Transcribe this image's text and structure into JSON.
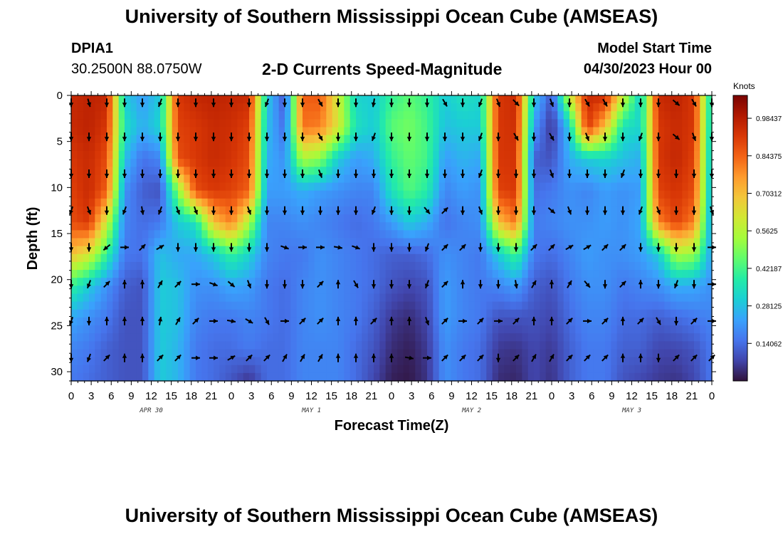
{
  "header": {
    "title": "University of Southern Mississippi Ocean Cube (AMSEAS)",
    "station_id": "DPIA1",
    "station_coords": "30.2500N  88.0750W",
    "plot_title": "2-D Currents Speed-Magnitude",
    "model_start_label": "Model Start Time",
    "model_start_value": "04/30/2023 Hour 00"
  },
  "footer": {
    "title": "University of Southern Mississippi Ocean Cube (AMSEAS)"
  },
  "colors": {
    "background": "#ffffff",
    "axis": "#000000",
    "colormap": [
      "#30123b",
      "#4145ab",
      "#4675ed",
      "#39a2fc",
      "#1bcfd4",
      "#24eca6",
      "#61fc6c",
      "#a4fc3b",
      "#d1e834",
      "#f3c63a",
      "#fe9b2d",
      "#f36315",
      "#d93806",
      "#b11901",
      "#7a0402"
    ]
  },
  "chart_data": {
    "type": "heatmap",
    "title": "2-D Currents Speed-Magnitude",
    "xlabel": "Forecast Time(Z)",
    "ylabel": "Depth (ft)",
    "x_tick_labels": [
      "0",
      "3",
      "6",
      "9",
      "12",
      "15",
      "18",
      "21",
      "0",
      "3",
      "6",
      "9",
      "12",
      "15",
      "18",
      "21",
      "0",
      "3",
      "6",
      "9",
      "12",
      "15",
      "18",
      "21",
      "0",
      "3",
      "6",
      "9",
      "12",
      "15",
      "18",
      "21",
      "0"
    ],
    "date_labels": [
      "APR 30",
      "MAY 1",
      "MAY 2",
      "MAY 3"
    ],
    "ylim": [
      0,
      31
    ],
    "y_ticks": [
      0,
      5,
      10,
      15,
      20,
      25,
      30
    ],
    "colorbar_unit": "Knots",
    "colorbar_ticks": [
      "0.98437",
      "0.84375",
      "0.70312",
      "0.5625",
      "0.42187",
      "0.28125",
      "0.14062"
    ],
    "colorbar_range": [
      0,
      1.07
    ],
    "vector_depths": [
      0.8,
      4.5,
      8.5,
      12.5,
      16.5,
      20.5,
      24.5,
      28.5
    ],
    "speed_knots": [
      [
        0.95,
        0.97,
        0.96,
        0.3,
        0.22,
        0.3,
        0.92,
        0.96,
        0.97,
        0.96,
        0.95,
        0.3,
        0.1,
        0.85,
        0.86,
        0.6,
        0.32,
        0.3,
        0.4,
        0.45,
        0.4,
        0.3,
        0.35,
        0.32,
        0.92,
        0.95,
        0.3,
        0.1,
        0.6,
        0.95,
        0.95,
        0.6,
        0.3,
        0.95,
        0.97,
        0.92,
        0.3
      ],
      [
        0.95,
        0.97,
        0.92,
        0.35,
        0.25,
        0.32,
        0.9,
        0.92,
        0.95,
        0.94,
        0.9,
        0.28,
        0.14,
        0.82,
        0.8,
        0.62,
        0.35,
        0.3,
        0.45,
        0.48,
        0.42,
        0.28,
        0.3,
        0.3,
        0.92,
        0.94,
        0.22,
        0.05,
        0.3,
        0.92,
        0.7,
        0.35,
        0.32,
        0.92,
        0.95,
        0.92,
        0.28
      ],
      [
        0.92,
        0.95,
        0.88,
        0.28,
        0.15,
        0.18,
        0.88,
        0.92,
        0.95,
        0.93,
        0.88,
        0.25,
        0.2,
        0.55,
        0.5,
        0.3,
        0.22,
        0.25,
        0.4,
        0.46,
        0.42,
        0.22,
        0.26,
        0.24,
        0.92,
        0.93,
        0.12,
        0.1,
        0.25,
        0.3,
        0.32,
        0.28,
        0.25,
        0.92,
        0.96,
        0.9,
        0.25
      ],
      [
        0.9,
        0.95,
        0.85,
        0.2,
        0.12,
        0.1,
        0.5,
        0.88,
        0.92,
        0.9,
        0.85,
        0.22,
        0.22,
        0.25,
        0.22,
        0.2,
        0.18,
        0.18,
        0.35,
        0.44,
        0.38,
        0.18,
        0.22,
        0.2,
        0.9,
        0.92,
        0.14,
        0.16,
        0.2,
        0.18,
        0.22,
        0.2,
        0.22,
        0.9,
        0.93,
        0.88,
        0.22
      ],
      [
        0.88,
        0.92,
        0.6,
        0.18,
        0.14,
        0.16,
        0.3,
        0.35,
        0.7,
        0.8,
        0.55,
        0.18,
        0.18,
        0.2,
        0.18,
        0.16,
        0.14,
        0.16,
        0.22,
        0.3,
        0.25,
        0.15,
        0.18,
        0.2,
        0.7,
        0.82,
        0.16,
        0.18,
        0.2,
        0.2,
        0.22,
        0.2,
        0.24,
        0.8,
        0.9,
        0.8,
        0.2
      ],
      [
        0.7,
        0.62,
        0.4,
        0.16,
        0.15,
        0.28,
        0.24,
        0.24,
        0.3,
        0.4,
        0.32,
        0.18,
        0.16,
        0.16,
        0.2,
        0.18,
        0.16,
        0.14,
        0.12,
        0.12,
        0.14,
        0.2,
        0.18,
        0.16,
        0.3,
        0.42,
        0.16,
        0.14,
        0.18,
        0.22,
        0.2,
        0.2,
        0.22,
        0.3,
        0.55,
        0.52,
        0.22
      ],
      [
        0.4,
        0.3,
        0.2,
        0.12,
        0.1,
        0.3,
        0.28,
        0.2,
        0.2,
        0.24,
        0.22,
        0.16,
        0.14,
        0.18,
        0.2,
        0.18,
        0.16,
        0.14,
        0.1,
        0.08,
        0.1,
        0.22,
        0.18,
        0.16,
        0.18,
        0.22,
        0.12,
        0.1,
        0.16,
        0.2,
        0.2,
        0.16,
        0.18,
        0.2,
        0.25,
        0.24,
        0.2
      ],
      [
        0.24,
        0.2,
        0.16,
        0.1,
        0.1,
        0.3,
        0.28,
        0.18,
        0.16,
        0.16,
        0.18,
        0.16,
        0.14,
        0.18,
        0.2,
        0.18,
        0.16,
        0.12,
        0.06,
        0.04,
        0.08,
        0.22,
        0.18,
        0.16,
        0.1,
        0.1,
        0.1,
        0.08,
        0.14,
        0.18,
        0.18,
        0.14,
        0.14,
        0.12,
        0.14,
        0.16,
        0.18
      ],
      [
        0.18,
        0.16,
        0.12,
        0.1,
        0.1,
        0.3,
        0.26,
        0.16,
        0.14,
        0.14,
        0.16,
        0.14,
        0.14,
        0.18,
        0.18,
        0.18,
        0.14,
        0.1,
        0.04,
        0.02,
        0.06,
        0.2,
        0.16,
        0.14,
        0.06,
        0.05,
        0.08,
        0.06,
        0.12,
        0.16,
        0.16,
        0.12,
        0.12,
        0.08,
        0.08,
        0.1,
        0.16
      ],
      [
        0.16,
        0.14,
        0.12,
        0.1,
        0.1,
        0.3,
        0.26,
        0.16,
        0.14,
        0.1,
        0.05,
        0.14,
        0.14,
        0.18,
        0.18,
        0.18,
        0.14,
        0.08,
        0.02,
        0.01,
        0.05,
        0.2,
        0.16,
        0.14,
        0.04,
        0.03,
        0.08,
        0.05,
        0.12,
        0.16,
        0.16,
        0.1,
        0.08,
        0.06,
        0.05,
        0.08,
        0.16
      ]
    ],
    "vector_directions_deg": [
      [
        180,
        165,
        180,
        180,
        180,
        200,
        180,
        180,
        180,
        180,
        180,
        200,
        180,
        180,
        150,
        180,
        180,
        190,
        180,
        180,
        180,
        150,
        180,
        200,
        160,
        135,
        180,
        160,
        180,
        150,
        150,
        180,
        180,
        180,
        130,
        150,
        180
      ],
      [
        180,
        180,
        180,
        180,
        180,
        180,
        180,
        180,
        180,
        180,
        180,
        180,
        180,
        180,
        150,
        180,
        180,
        200,
        180,
        180,
        180,
        180,
        180,
        200,
        180,
        150,
        180,
        150,
        180,
        160,
        180,
        180,
        200,
        180,
        130,
        160,
        180
      ],
      [
        180,
        180,
        180,
        180,
        180,
        180,
        180,
        180,
        180,
        180,
        180,
        180,
        180,
        180,
        160,
        180,
        180,
        180,
        180,
        180,
        180,
        180,
        180,
        200,
        180,
        180,
        180,
        160,
        180,
        180,
        180,
        200,
        180,
        180,
        180,
        180,
        180
      ],
      [
        200,
        160,
        180,
        200,
        170,
        200,
        160,
        160,
        180,
        180,
        160,
        180,
        180,
        180,
        180,
        180,
        180,
        200,
        180,
        180,
        140,
        45,
        180,
        160,
        180,
        180,
        180,
        130,
        160,
        180,
        180,
        180,
        200,
        160,
        180,
        180,
        160
      ],
      [
        180,
        180,
        230,
        90,
        45,
        60,
        180,
        180,
        180,
        180,
        180,
        180,
        110,
        90,
        90,
        100,
        110,
        180,
        180,
        180,
        200,
        45,
        45,
        180,
        180,
        180,
        45,
        45,
        60,
        60,
        45,
        45,
        180,
        180,
        180,
        180,
        90
      ],
      [
        180,
        200,
        45,
        0,
        0,
        30,
        45,
        90,
        110,
        130,
        160,
        180,
        180,
        180,
        45,
        0,
        150,
        180,
        180,
        180,
        200,
        45,
        0,
        180,
        180,
        170,
        30,
        0,
        30,
        140,
        180,
        45,
        0,
        180,
        200,
        180,
        90
      ],
      [
        200,
        180,
        0,
        0,
        0,
        10,
        30,
        45,
        90,
        100,
        120,
        150,
        90,
        45,
        45,
        0,
        0,
        45,
        0,
        0,
        160,
        45,
        90,
        45,
        90,
        45,
        0,
        0,
        45,
        90,
        45,
        0,
        45,
        150,
        180,
        45,
        90
      ],
      [
        180,
        200,
        45,
        0,
        0,
        45,
        45,
        90,
        90,
        60,
        45,
        45,
        30,
        30,
        30,
        0,
        0,
        0,
        0,
        100,
        90,
        45,
        45,
        45,
        180,
        45,
        30,
        30,
        45,
        45,
        45,
        0,
        0,
        180,
        45,
        45,
        45
      ]
    ]
  }
}
